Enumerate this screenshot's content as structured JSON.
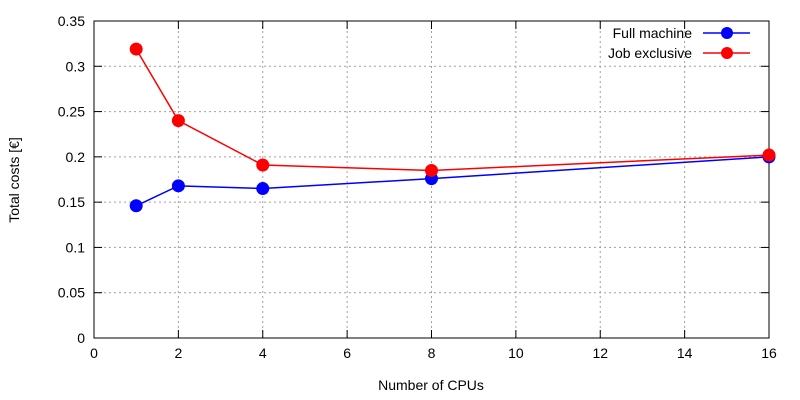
{
  "chart_data": {
    "type": "line",
    "title": "",
    "xlabel": "Number of CPUs",
    "ylabel": "Total costs [€]",
    "xlim": [
      0,
      16
    ],
    "ylim": [
      0,
      0.35
    ],
    "x_ticks": [
      0,
      2,
      4,
      6,
      8,
      10,
      12,
      14,
      16
    ],
    "x_tick_labels": [
      "0",
      "2",
      "4",
      "6",
      "8",
      "10",
      "12",
      "14",
      "16"
    ],
    "y_ticks": [
      0,
      0.05,
      0.1,
      0.15,
      0.2,
      0.25,
      0.3,
      0.35
    ],
    "y_tick_labels": [
      "0",
      "0.05",
      "0.1",
      "0.15",
      "0.2",
      "0.25",
      "0.3",
      "0.35"
    ],
    "grid": true,
    "legend_position": "top-right",
    "series": [
      {
        "name": "Full machine",
        "color": "#0000ff",
        "x": [
          1,
          2,
          4,
          8,
          16
        ],
        "y": [
          0.146,
          0.168,
          0.165,
          0.176,
          0.2
        ]
      },
      {
        "name": "Job exclusive",
        "color": "#ff0000",
        "x": [
          1,
          2,
          4,
          8,
          16
        ],
        "y": [
          0.319,
          0.24,
          0.191,
          0.185,
          0.202
        ]
      }
    ]
  }
}
